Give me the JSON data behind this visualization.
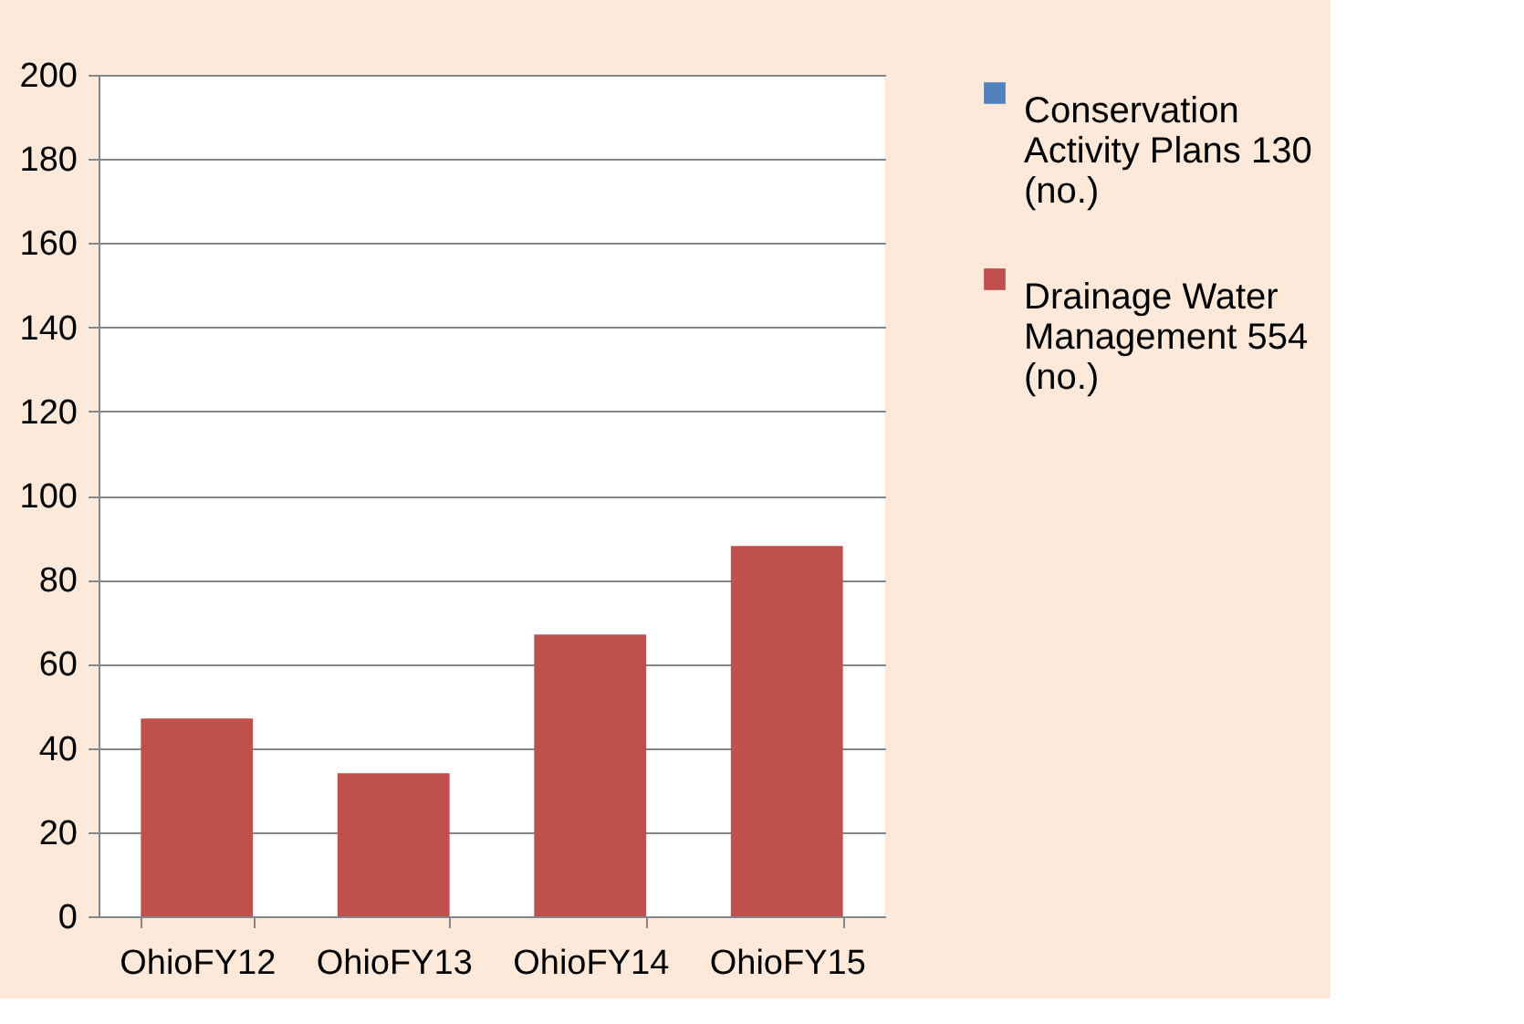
{
  "chart_data": {
    "type": "bar",
    "categories": [
      "OhioFY12",
      "OhioFY13",
      "OhioFY14",
      "OhioFY15"
    ],
    "series": [
      {
        "name": "Conservation Activity Plans 130 (no.)",
        "color": "#4f81bd",
        "values": [
          null,
          null,
          null,
          null
        ]
      },
      {
        "name": "Drainage Water Management 554 (no.)",
        "color": "#c0504d",
        "values": [
          47,
          34,
          67,
          88
        ]
      }
    ],
    "ylim": [
      0,
      200
    ],
    "yticks": [
      0,
      20,
      40,
      60,
      80,
      100,
      120,
      140,
      160,
      180,
      200
    ],
    "grid": "y",
    "legend": "right"
  }
}
